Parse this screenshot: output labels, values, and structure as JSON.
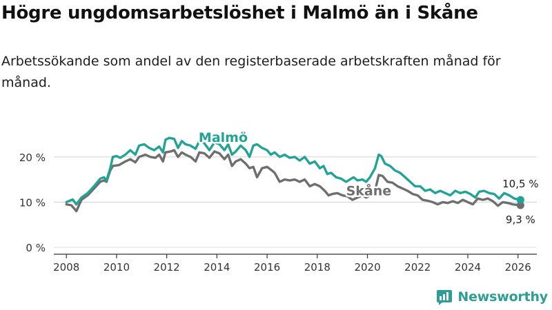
{
  "title": "Högre ungdomsarbetslöshet i Malmö än i Skåne",
  "subtitle": "Arbetssökande som andel av den registerbaserade arbetskraften månad för månad.",
  "brand": "Newsworthy",
  "colors": {
    "malmo": "#21a396",
    "skane": "#6e6e6e",
    "grid": "#d9d9d9",
    "axis": "#333333"
  },
  "chart_data": {
    "type": "line",
    "xlim": [
      2007.5,
      2026.75
    ],
    "ylim": [
      0,
      25
    ],
    "yticks": [
      0,
      10,
      20
    ],
    "ytick_labels": [
      "0 %",
      "10 %",
      "20 %"
    ],
    "xticks": [
      2008,
      2010,
      2012,
      2014,
      2016,
      2018,
      2020,
      2022,
      2024,
      2026
    ],
    "xtick_labels": [
      "2008",
      "2010",
      "2012",
      "2014",
      "2016",
      "2018",
      "2020",
      "2022",
      "2024",
      "2026"
    ],
    "grid": true,
    "series": [
      {
        "name": "Malmö",
        "label": "Malmö",
        "end_label": "10,5 %",
        "color_key": "malmo",
        "points": [
          [
            2008.0,
            10.0
          ],
          [
            2008.25,
            10.6
          ],
          [
            2008.4,
            9.5
          ],
          [
            2008.6,
            11.0
          ],
          [
            2008.85,
            12.0
          ],
          [
            2009.1,
            13.5
          ],
          [
            2009.35,
            15.2
          ],
          [
            2009.5,
            15.5
          ],
          [
            2009.6,
            14.8
          ],
          [
            2009.75,
            17.5
          ],
          [
            2009.85,
            20.0
          ],
          [
            2010.0,
            20.2
          ],
          [
            2010.15,
            19.8
          ],
          [
            2010.35,
            20.5
          ],
          [
            2010.55,
            21.5
          ],
          [
            2010.75,
            20.5
          ],
          [
            2010.9,
            22.5
          ],
          [
            2011.1,
            22.8
          ],
          [
            2011.3,
            22.0
          ],
          [
            2011.5,
            21.5
          ],
          [
            2011.7,
            22.3
          ],
          [
            2011.85,
            21.0
          ],
          [
            2011.95,
            23.8
          ],
          [
            2012.1,
            24.2
          ],
          [
            2012.3,
            24.0
          ],
          [
            2012.45,
            22.0
          ],
          [
            2012.6,
            23.5
          ],
          [
            2012.75,
            22.8
          ],
          [
            2012.95,
            22.5
          ],
          [
            2013.15,
            21.8
          ],
          [
            2013.3,
            23.5
          ],
          [
            2013.5,
            23.0
          ],
          [
            2013.7,
            21.5
          ],
          [
            2013.9,
            23.2
          ],
          [
            2014.1,
            22.8
          ],
          [
            2014.3,
            21.5
          ],
          [
            2014.45,
            22.8
          ],
          [
            2014.6,
            20.5
          ],
          [
            2014.75,
            21.2
          ],
          [
            2014.95,
            22.5
          ],
          [
            2015.15,
            21.5
          ],
          [
            2015.3,
            20.0
          ],
          [
            2015.45,
            22.5
          ],
          [
            2015.6,
            22.8
          ],
          [
            2015.8,
            22.0
          ],
          [
            2016.0,
            21.5
          ],
          [
            2016.15,
            20.5
          ],
          [
            2016.3,
            21.0
          ],
          [
            2016.5,
            20.0
          ],
          [
            2016.7,
            20.5
          ],
          [
            2016.9,
            19.8
          ],
          [
            2017.1,
            20.0
          ],
          [
            2017.3,
            19.2
          ],
          [
            2017.5,
            20.0
          ],
          [
            2017.7,
            18.5
          ],
          [
            2017.9,
            19.0
          ],
          [
            2018.1,
            17.5
          ],
          [
            2018.25,
            18.0
          ],
          [
            2018.4,
            16.2
          ],
          [
            2018.55,
            16.5
          ],
          [
            2018.75,
            15.5
          ],
          [
            2018.95,
            15.2
          ],
          [
            2019.15,
            14.5
          ],
          [
            2019.3,
            15.0
          ],
          [
            2019.45,
            15.5
          ],
          [
            2019.6,
            14.8
          ],
          [
            2019.8,
            15.0
          ],
          [
            2019.95,
            14.5
          ],
          [
            2020.1,
            15.5
          ],
          [
            2020.3,
            17.5
          ],
          [
            2020.45,
            20.5
          ],
          [
            2020.55,
            20.2
          ],
          [
            2020.7,
            18.5
          ],
          [
            2020.9,
            18.0
          ],
          [
            2021.1,
            17.0
          ],
          [
            2021.3,
            16.5
          ],
          [
            2021.5,
            15.5
          ],
          [
            2021.7,
            14.5
          ],
          [
            2021.9,
            13.5
          ],
          [
            2022.1,
            13.5
          ],
          [
            2022.3,
            12.5
          ],
          [
            2022.5,
            12.8
          ],
          [
            2022.7,
            12.0
          ],
          [
            2022.9,
            12.5
          ],
          [
            2023.1,
            12.0
          ],
          [
            2023.3,
            11.5
          ],
          [
            2023.5,
            12.5
          ],
          [
            2023.7,
            12.0
          ],
          [
            2023.9,
            12.3
          ],
          [
            2024.1,
            11.8
          ],
          [
            2024.3,
            11.0
          ],
          [
            2024.45,
            12.3
          ],
          [
            2024.65,
            12.5
          ],
          [
            2024.85,
            12.0
          ],
          [
            2025.05,
            11.8
          ],
          [
            2025.25,
            10.8
          ],
          [
            2025.45,
            12.0
          ],
          [
            2025.65,
            11.5
          ],
          [
            2025.85,
            10.8
          ],
          [
            2026.1,
            10.5
          ]
        ]
      },
      {
        "name": "Skåne",
        "label": "Skåne",
        "end_label": "9,3 %",
        "color_key": "skane",
        "points": [
          [
            2008.0,
            9.5
          ],
          [
            2008.2,
            9.3
          ],
          [
            2008.4,
            8.0
          ],
          [
            2008.6,
            10.5
          ],
          [
            2008.85,
            11.5
          ],
          [
            2009.1,
            13.0
          ],
          [
            2009.35,
            14.5
          ],
          [
            2009.5,
            14.8
          ],
          [
            2009.6,
            14.5
          ],
          [
            2009.75,
            17.0
          ],
          [
            2009.85,
            18.0
          ],
          [
            2010.1,
            18.2
          ],
          [
            2010.35,
            19.0
          ],
          [
            2010.55,
            19.5
          ],
          [
            2010.75,
            18.8
          ],
          [
            2010.9,
            20.0
          ],
          [
            2011.15,
            20.5
          ],
          [
            2011.35,
            20.0
          ],
          [
            2011.55,
            19.8
          ],
          [
            2011.7,
            20.5
          ],
          [
            2011.85,
            19.0
          ],
          [
            2011.95,
            21.0
          ],
          [
            2012.15,
            21.2
          ],
          [
            2012.3,
            21.5
          ],
          [
            2012.45,
            20.0
          ],
          [
            2012.6,
            21.0
          ],
          [
            2012.75,
            20.5
          ],
          [
            2012.95,
            20.0
          ],
          [
            2013.15,
            19.0
          ],
          [
            2013.3,
            21.0
          ],
          [
            2013.5,
            20.8
          ],
          [
            2013.7,
            19.8
          ],
          [
            2013.9,
            21.2
          ],
          [
            2014.1,
            20.8
          ],
          [
            2014.3,
            19.5
          ],
          [
            2014.45,
            20.5
          ],
          [
            2014.6,
            18.0
          ],
          [
            2014.75,
            19.0
          ],
          [
            2014.95,
            19.5
          ],
          [
            2015.15,
            18.5
          ],
          [
            2015.3,
            17.5
          ],
          [
            2015.45,
            17.8
          ],
          [
            2015.6,
            15.5
          ],
          [
            2015.8,
            17.5
          ],
          [
            2016.0,
            17.8
          ],
          [
            2016.15,
            17.2
          ],
          [
            2016.3,
            16.5
          ],
          [
            2016.5,
            14.5
          ],
          [
            2016.7,
            15.0
          ],
          [
            2016.9,
            14.8
          ],
          [
            2017.1,
            15.0
          ],
          [
            2017.3,
            14.5
          ],
          [
            2017.5,
            15.0
          ],
          [
            2017.7,
            13.5
          ],
          [
            2017.9,
            14.0
          ],
          [
            2018.1,
            13.5
          ],
          [
            2018.3,
            12.5
          ],
          [
            2018.45,
            11.5
          ],
          [
            2018.6,
            11.8
          ],
          [
            2018.8,
            12.0
          ],
          [
            2019.0,
            11.5
          ],
          [
            2019.2,
            11.3
          ],
          [
            2019.4,
            10.5
          ],
          [
            2019.6,
            11.0
          ],
          [
            2019.8,
            11.5
          ],
          [
            2019.95,
            11.0
          ],
          [
            2020.1,
            11.5
          ],
          [
            2020.3,
            12.5
          ],
          [
            2020.45,
            16.0
          ],
          [
            2020.6,
            15.8
          ],
          [
            2020.8,
            14.5
          ],
          [
            2021.0,
            14.3
          ],
          [
            2021.2,
            13.5
          ],
          [
            2021.4,
            13.0
          ],
          [
            2021.6,
            12.5
          ],
          [
            2021.8,
            11.8
          ],
          [
            2022.0,
            11.5
          ],
          [
            2022.2,
            10.5
          ],
          [
            2022.4,
            10.3
          ],
          [
            2022.6,
            10.0
          ],
          [
            2022.8,
            9.5
          ],
          [
            2023.0,
            10.0
          ],
          [
            2023.2,
            9.8
          ],
          [
            2023.4,
            10.2
          ],
          [
            2023.6,
            9.8
          ],
          [
            2023.8,
            10.5
          ],
          [
            2024.0,
            10.0
          ],
          [
            2024.2,
            9.5
          ],
          [
            2024.4,
            10.8
          ],
          [
            2024.6,
            10.5
          ],
          [
            2024.8,
            10.8
          ],
          [
            2025.0,
            10.2
          ],
          [
            2025.2,
            9.2
          ],
          [
            2025.4,
            10.0
          ],
          [
            2025.6,
            9.8
          ],
          [
            2025.8,
            9.5
          ],
          [
            2026.1,
            9.3
          ]
        ]
      }
    ]
  }
}
